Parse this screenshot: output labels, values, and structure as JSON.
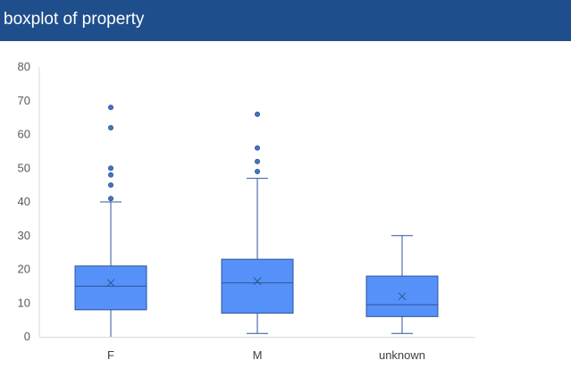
{
  "page": {
    "title": "boxplot of property"
  },
  "chart_data": {
    "type": "boxplot",
    "title": "boxplot of property",
    "xlabel": "",
    "ylabel": "",
    "ylim": [
      0,
      80
    ],
    "yticks": [
      0,
      10,
      20,
      30,
      40,
      50,
      60,
      70,
      80
    ],
    "categories": [
      "F",
      "M",
      "unknown"
    ],
    "boxes": [
      {
        "category": "F",
        "whisker_low": 0,
        "q1": 8,
        "median": 15,
        "q3": 21,
        "whisker_high": 40,
        "mean": 16,
        "outliers": [
          41,
          45,
          48,
          50,
          62,
          68
        ]
      },
      {
        "category": "M",
        "whisker_low": 1,
        "q1": 7,
        "median": 16,
        "q3": 23,
        "whisker_high": 47,
        "mean": 16.5,
        "outliers": [
          49,
          52,
          56,
          66
        ]
      },
      {
        "category": "unknown",
        "whisker_low": 1,
        "q1": 6,
        "median": 9.5,
        "q3": 18,
        "whisker_high": 30,
        "mean": 12,
        "outliers": []
      }
    ],
    "colors": {
      "box_fill": "#5591f8",
      "box_stroke": "#2f5597",
      "outlier": "#4472c4",
      "axis": "#d9d9d9",
      "tick_text": "#595959"
    },
    "grid": false,
    "legend": "none"
  }
}
